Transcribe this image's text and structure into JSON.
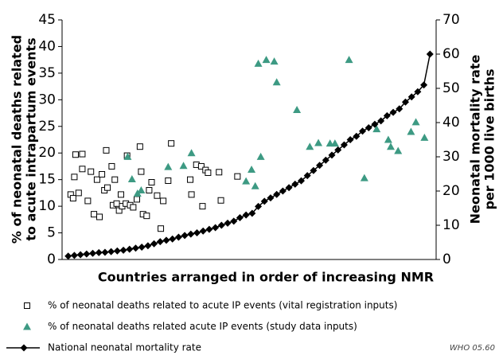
{
  "chart_data": {
    "type": "combo",
    "xlabel": "Countries arranged in order of increasing NMR",
    "ylabel": [
      "% of neonatal deaths related",
      "to acute intrapartum events"
    ],
    "y2label": [
      "Neonatal mortality rate",
      "per 1000 live births"
    ],
    "note": "WHO 05.60",
    "xlim": [
      0,
      61
    ],
    "ylim": [
      0,
      45
    ],
    "yticks": [
      0,
      5,
      10,
      15,
      20,
      25,
      30,
      35,
      40,
      45
    ],
    "y2lim": [
      0,
      70
    ],
    "y2ticks": [
      0,
      10,
      20,
      30,
      40,
      50,
      60,
      70
    ],
    "series": [
      {
        "name": "% of neonatal deaths related to acute IP events (vital registration inputs)",
        "marker": "square",
        "color": "#000000",
        "x": [
          1.4,
          1.8,
          2.0,
          2.2,
          2.7,
          3.3,
          3.3,
          4.2,
          4.7,
          5.2,
          5.7,
          6.1,
          6.5,
          6.9,
          7.2,
          7.4,
          8.1,
          8.3,
          8.6,
          8.9,
          9.3,
          9.6,
          9.8,
          10.4,
          10.6,
          11.1,
          11.6,
          12.2,
          12.7,
          12.9,
          13.2,
          13.8,
          14.2,
          14.6,
          15.5,
          16.1,
          16.5,
          17.3,
          17.8,
          20.9,
          21.1,
          21.9,
          22.7,
          22.9,
          23.4,
          23.8,
          25.6,
          25.9,
          28.6
        ],
        "values": [
          12.2,
          11.5,
          15.5,
          19.7,
          12.5,
          19.8,
          17,
          11,
          16.5,
          8.5,
          15,
          8,
          16,
          13,
          20.5,
          13.5,
          17.5,
          10.2,
          15,
          10.5,
          9.2,
          12.2,
          10,
          10.5,
          19.5,
          10.2,
          9.8,
          11.3,
          21.2,
          16.5,
          8.5,
          8.2,
          13,
          14.5,
          12,
          5.8,
          11,
          14.8,
          21.8,
          15,
          12.2,
          17.8,
          17.5,
          10,
          16.8,
          16.3,
          16.4,
          11.1,
          15.6
        ]
      },
      {
        "name": "% of neonatal deaths related acute IP events (study data inputs)",
        "marker": "triangle",
        "color": "#3d9a83",
        "x": [
          10.7,
          11.4,
          12.3,
          12.9,
          17.3,
          19.8,
          21.1,
          30.0,
          30.9,
          31.5,
          32.4,
          32.0,
          33.3,
          34.6,
          35.0,
          38.3,
          40.4,
          41.8,
          43.7,
          44.5,
          46.8,
          49.3,
          51.3,
          53.2,
          53.6,
          54.8,
          56.9,
          57.7,
          59.1
        ],
        "values": [
          19.3,
          15.1,
          12.4,
          13.0,
          17.4,
          17.6,
          20.0,
          14.7,
          16.9,
          13.8,
          19.3,
          36.8,
          37.5,
          37.2,
          33.3,
          28.1,
          21.2,
          21.9,
          21.8,
          21.8,
          37.5,
          15.3,
          24.5,
          22.5,
          21.2,
          20.4,
          24.0,
          25.8,
          22.9
        ]
      },
      {
        "name": "National neonatal mortality rate",
        "marker": "diamond",
        "color": "#000000",
        "axis": "y2",
        "x": [
          1,
          2,
          3,
          4,
          5,
          6,
          7,
          8,
          9,
          10,
          11,
          12,
          13,
          14,
          15,
          16,
          17,
          18,
          19,
          20,
          21,
          22,
          23,
          24,
          25,
          26,
          27,
          28,
          29,
          30,
          31,
          32,
          33,
          34,
          35,
          36,
          37,
          38,
          39,
          40,
          41,
          42,
          43,
          44,
          45,
          46,
          47,
          48,
          49,
          50,
          51,
          52,
          53,
          54,
          55,
          56,
          57,
          58,
          59,
          60
        ],
        "values": [
          1.0,
          1.2,
          1.4,
          1.6,
          1.8,
          2.0,
          2.1,
          2.3,
          2.5,
          2.7,
          3.0,
          3.3,
          3.6,
          4.0,
          4.6,
          5.2,
          5.6,
          6.0,
          6.5,
          7.0,
          7.4,
          7.8,
          8.3,
          8.8,
          9.3,
          10.0,
          10.6,
          11.2,
          12.2,
          13.0,
          13.5,
          15.5,
          17.0,
          18.0,
          19.0,
          20.0,
          21.0,
          22.0,
          23.0,
          24.5,
          26.0,
          27.5,
          29.0,
          30.5,
          32.0,
          33.5,
          35.0,
          36.0,
          37.5,
          38.5,
          39.5,
          40.5,
          42.0,
          43.0,
          44.0,
          46.0,
          47.5,
          49.0,
          51.0,
          60.0
        ]
      }
    ]
  }
}
